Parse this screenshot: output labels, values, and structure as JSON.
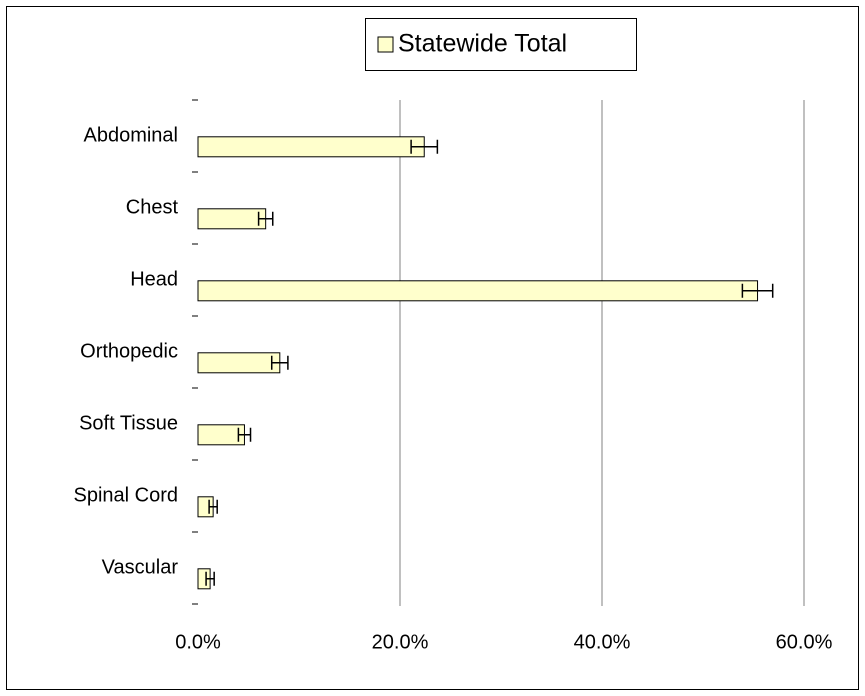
{
  "chart_data": {
    "type": "hbar",
    "categories": [
      "Abdominal",
      "Chest",
      "Head",
      "Orthopedic",
      "Soft Tissue",
      "Spinal Cord",
      "Vascular"
    ],
    "series": [
      {
        "name": "Statewide Total",
        "color": "#ffffcc",
        "values": [
          22.4,
          6.7,
          55.4,
          8.1,
          4.6,
          1.5,
          1.2
        ],
        "errors": [
          1.3,
          0.7,
          1.5,
          0.8,
          0.6,
          0.4,
          0.4
        ]
      }
    ],
    "xlim": [
      0,
      60
    ],
    "xticks": [
      {
        "value": 0,
        "label": "0.0%"
      },
      {
        "value": 20,
        "label": "20.0%"
      },
      {
        "value": 40,
        "label": "40.0%"
      },
      {
        "value": 60,
        "label": "60.0%"
      }
    ],
    "grid": true,
    "legend": "top"
  }
}
